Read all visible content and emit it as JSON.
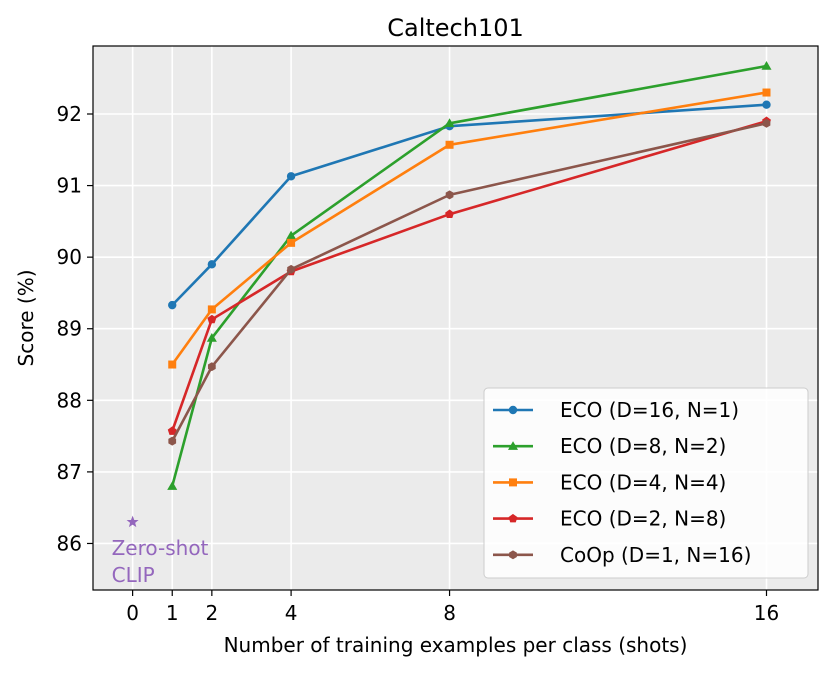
{
  "chart_data": {
    "type": "line",
    "title": "Caltech101",
    "xlabel": "Number of training examples per class (shots)",
    "ylabel": "Score (%)",
    "xlim": [
      -1,
      17.3
    ],
    "ylim": [
      85.35,
      92.95
    ],
    "xticks": [
      0,
      1,
      2,
      4,
      8,
      16
    ],
    "xtick_labels": [
      "0",
      "1",
      "2",
      "4",
      "8",
      "16"
    ],
    "yticks": [
      86,
      87,
      88,
      89,
      90,
      91,
      92
    ],
    "ytick_labels": [
      "86",
      "87",
      "88",
      "89",
      "90",
      "91",
      "92"
    ],
    "grid": true,
    "legend_position": "lower-right",
    "x": [
      1,
      2,
      4,
      8,
      16
    ],
    "series": [
      {
        "name": "ECO (D=16, N=1)",
        "color": "#1f77b4",
        "marker": "circle",
        "values": [
          89.33,
          89.9,
          91.13,
          91.83,
          92.13
        ]
      },
      {
        "name": "ECO (D=8, N=2)",
        "color": "#2ca02c",
        "marker": "triangle",
        "values": [
          86.8,
          88.87,
          90.3,
          91.87,
          92.67
        ]
      },
      {
        "name": "ECO (D=4, N=4)",
        "color": "#ff7f0e",
        "marker": "square",
        "values": [
          88.5,
          89.27,
          90.2,
          91.57,
          92.3
        ]
      },
      {
        "name": "ECO (D=2, N=8)",
        "color": "#d62728",
        "marker": "pentagon",
        "values": [
          87.57,
          89.13,
          89.8,
          90.6,
          91.9
        ]
      },
      {
        "name": "CoOp (D=1, N=16)",
        "color": "#8c564b",
        "marker": "hexagon",
        "values": [
          87.43,
          88.47,
          89.83,
          90.87,
          91.87
        ]
      }
    ],
    "zero_shot": {
      "x": 0,
      "y": 86.3,
      "label_line1": "Zero-shot",
      "label_line2": "CLIP",
      "color": "#9467bd",
      "marker": "star"
    }
  }
}
